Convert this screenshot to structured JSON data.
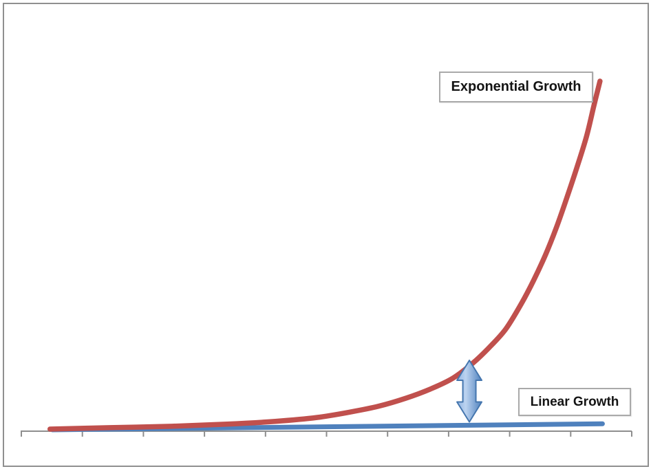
{
  "labels": {
    "exponential": "Exponential Growth",
    "linear": "Linear Growth"
  },
  "colors": {
    "exponential_line": "#C0504D",
    "linear_line": "#4F81BD",
    "axis": "#8e8e8e",
    "frame_border": "#8F8F8F",
    "label_box_border": "#A9A9A9",
    "arrow_stroke": "#4576AE",
    "arrow_fill_light": "#BCD3F0",
    "arrow_fill_mid": "#8FB3E0",
    "arrow_fill_dark": "#4F81BD"
  },
  "chart_data": {
    "type": "line",
    "title": "",
    "xlabel": "",
    "ylabel": "",
    "x_axis": {
      "range": [
        0,
        10
      ],
      "ticks": [
        0,
        1,
        2,
        3,
        4,
        5,
        6,
        7,
        8,
        9,
        10
      ],
      "tick_labels_visible": false
    },
    "y_axis": {
      "range": [
        0,
        100
      ],
      "visible": false
    },
    "grid": false,
    "legend_position": "inline-callout-boxes",
    "series": [
      {
        "name": "Exponential Growth",
        "color": "#C0504D",
        "points": [
          [
            0.47,
            0.6
          ],
          [
            1.45,
            1.0
          ],
          [
            2.47,
            1.4
          ],
          [
            3.37,
            2.0
          ],
          [
            4.16,
            2.8
          ],
          [
            4.84,
            3.9
          ],
          [
            5.4,
            5.5
          ],
          [
            5.85,
            7.1
          ],
          [
            6.3,
            9.4
          ],
          [
            6.7,
            12.0
          ],
          [
            7.07,
            15.1
          ],
          [
            7.41,
            19.6
          ],
          [
            7.69,
            24.3
          ],
          [
            7.94,
            29.2
          ],
          [
            8.19,
            36.3
          ],
          [
            8.39,
            42.9
          ],
          [
            8.59,
            50.4
          ],
          [
            8.76,
            57.8
          ],
          [
            8.92,
            65.7
          ],
          [
            9.1,
            75.1
          ],
          [
            9.26,
            84.1
          ],
          [
            9.38,
            92.8
          ],
          [
            9.48,
            99.8
          ]
        ]
      },
      {
        "name": "Linear Growth",
        "color": "#4F81BD",
        "points": [
          [
            0.51,
            0.4
          ],
          [
            9.52,
            2.1
          ]
        ]
      }
    ],
    "annotations": [
      {
        "type": "double_headed_arrow",
        "x": 7.34,
        "y_from": 2.65,
        "y_to": 20.2
      }
    ]
  }
}
